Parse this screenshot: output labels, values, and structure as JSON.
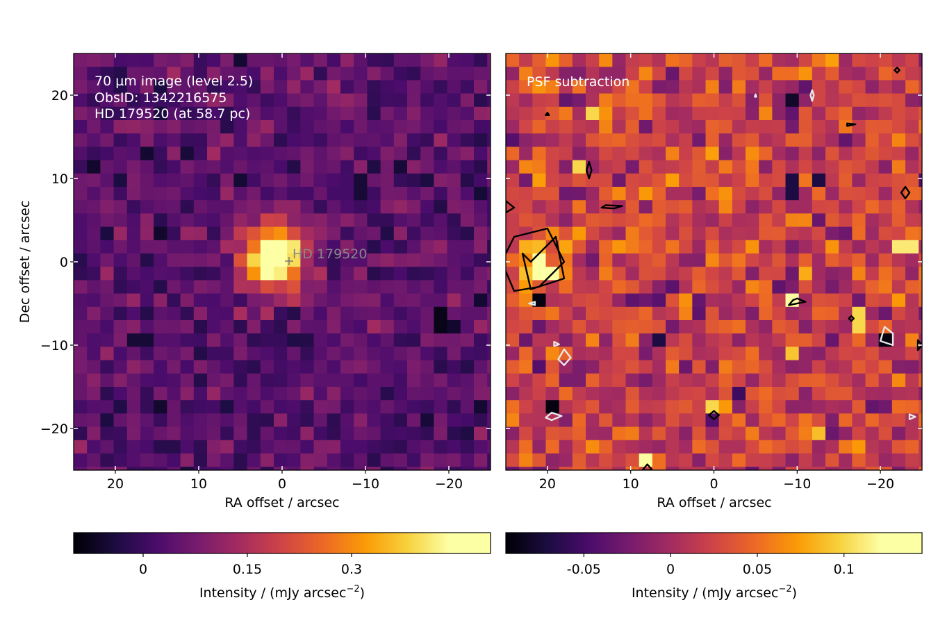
{
  "chart_data": [
    {
      "type": "heatmap",
      "panel": "left",
      "annotation_lines": [
        "70 µm image (level 2.5)",
        "ObsID: 1342216575",
        "HD 179520 (at 58.7 pc)"
      ],
      "star_label": "HD 179520",
      "star_marker": {
        "x": 1,
        "y": 0
      },
      "xlabel": "RA offset / arcsec",
      "ylabel": "Dec offset / arcsec",
      "xlim": [
        25,
        -25
      ],
      "ylim": [
        -25,
        25
      ],
      "xticks": [
        20,
        10,
        0,
        -10,
        -20
      ],
      "xtick_labels": [
        "20",
        "10",
        "0",
        "−10",
        "−20"
      ],
      "yticks": [
        20,
        10,
        0,
        -10,
        -20
      ],
      "ytick_labels": [
        "20",
        "10",
        "0",
        "−10",
        "−20"
      ],
      "grid": false,
      "colormap": "inferno",
      "color_range": [
        -0.1,
        0.5
      ],
      "pixel_size_arcsec": 1.6,
      "noise_level": 0.07,
      "source": {
        "x": 1,
        "y": 0.5,
        "peak": 0.5,
        "width_arcsec": 2.6
      },
      "dark_pixels": [
        [
          15,
          3,
          -0.06
        ],
        [
          -19,
          -7,
          -0.08
        ],
        [
          -20,
          -8,
          -0.06
        ],
        [
          17,
          -9,
          -0.05
        ],
        [
          -9,
          9,
          -0.05
        ],
        [
          20,
          10,
          -0.04
        ]
      ],
      "colorbar": {
        "ticks": [
          0,
          0.15,
          0.3
        ],
        "tick_labels": [
          "0",
          "0.15",
          "0.3"
        ],
        "label": "Intensity / (mJy arcsec",
        "label_exp": "−2",
        "label_end": ")"
      }
    },
    {
      "type": "heatmap",
      "panel": "right",
      "annotation_lines": [
        "PSF subtraction"
      ],
      "xlabel": "RA offset / arcsec",
      "ylabel": "",
      "xlim": [
        25,
        -25
      ],
      "ylim": [
        -25,
        25
      ],
      "xticks": [
        20,
        10,
        0,
        -10,
        -20
      ],
      "xtick_labels": [
        "20",
        "10",
        "0",
        "−10",
        "−20"
      ],
      "yticks": [
        20,
        10,
        0,
        -10,
        -20
      ],
      "grid": false,
      "colormap": "inferno",
      "color_range": [
        -0.095,
        0.145
      ],
      "pixel_size_arcsec": 1.6,
      "noise_level": 0.045,
      "residual_source": {
        "x": 21,
        "y": 0,
        "peak": 0.14,
        "width_arcsec": 1.6
      },
      "bright_pixels": [
        [
          15,
          18,
          0.1
        ],
        [
          16,
          11,
          0.1
        ],
        [
          -10,
          -5,
          0.12
        ],
        [
          -17,
          -7,
          0.1
        ],
        [
          0,
          -18,
          0.1
        ],
        [
          -23,
          2,
          0.11
        ],
        [
          8,
          -24,
          0.12
        ]
      ],
      "dark_pixels": [
        [
          -10,
          20,
          -0.08
        ],
        [
          -20,
          -10,
          -0.09
        ],
        [
          19,
          -18,
          -0.09
        ],
        [
          21,
          -5,
          -0.09
        ],
        [
          -9,
          9,
          -0.07
        ],
        [
          7,
          -10,
          -0.07
        ],
        [
          -12,
          10,
          -0.07
        ]
      ],
      "contours_black": [
        [
          [
            22,
            0
          ],
          [
            19,
            3
          ],
          [
            18,
            -2
          ],
          [
            22,
            -3.3
          ],
          [
            23,
            1
          ]
        ],
        [
          [
            24,
            3
          ],
          [
            20,
            4
          ],
          [
            18,
            0
          ],
          [
            21,
            -3
          ],
          [
            24,
            -3.5
          ],
          [
            25.5,
            0
          ]
        ],
        [
          [
            15,
            12
          ],
          [
            14.7,
            11
          ],
          [
            15,
            10
          ],
          [
            15.3,
            11
          ]
        ],
        [
          [
            13,
            6.8
          ],
          [
            11,
            6.7
          ],
          [
            12,
            6.4
          ],
          [
            13.5,
            6.5
          ]
        ],
        [
          [
            -10,
            -4.4
          ],
          [
            -11,
            -4.8
          ],
          [
            -9,
            -5.2
          ],
          [
            -9.5,
            -4.6
          ]
        ],
        [
          [
            0,
            -17.9
          ],
          [
            -0.6,
            -18.4
          ],
          [
            0,
            -18.9
          ],
          [
            0.6,
            -18.4
          ]
        ],
        [
          [
            -23,
            9
          ],
          [
            -23.5,
            8.3
          ],
          [
            -23,
            7.6
          ],
          [
            -22.5,
            8.3
          ]
        ],
        [
          [
            25,
            7.3
          ],
          [
            24,
            6.5
          ],
          [
            25,
            5.9
          ]
        ],
        [
          [
            -22,
            23.3
          ],
          [
            -22.3,
            23
          ],
          [
            -22,
            22.7
          ],
          [
            -21.7,
            23
          ]
        ],
        [
          [
            -16,
            16.6
          ],
          [
            -17,
            16.5
          ],
          [
            -16,
            16.3
          ]
        ],
        [
          [
            -24.5,
            -9.4
          ],
          [
            -25,
            -10
          ],
          [
            -24.5,
            -10.6
          ]
        ],
        [
          [
            -16.5,
            -6.5
          ],
          [
            -16.8,
            -6.8
          ],
          [
            -16.5,
            -7.1
          ],
          [
            -16.2,
            -6.8
          ]
        ],
        [
          [
            8,
            -24.3
          ],
          [
            7.4,
            -25
          ],
          [
            8.6,
            -25
          ]
        ],
        [
          [
            20,
            17.9
          ],
          [
            19.8,
            17.6
          ],
          [
            20.2,
            17.6
          ]
        ]
      ],
      "contours_white": [
        [
          [
            -20.5,
            -7.8
          ],
          [
            -21.5,
            -8.6
          ],
          [
            -21.5,
            -10
          ],
          [
            -20,
            -9.5
          ]
        ],
        [
          [
            18,
            -10.5
          ],
          [
            18.7,
            -11.7
          ],
          [
            18,
            -12.4
          ],
          [
            17.2,
            -11.5
          ]
        ],
        [
          [
            19.5,
            -18.1
          ],
          [
            18.3,
            -18.5
          ],
          [
            19.5,
            -19
          ],
          [
            20.2,
            -18.7
          ]
        ],
        [
          [
            21.5,
            -4.8
          ],
          [
            22.2,
            -5
          ],
          [
            21.5,
            -5.2
          ]
        ],
        [
          [
            -11.8,
            20.6
          ],
          [
            -12,
            20
          ],
          [
            -11.8,
            19.3
          ],
          [
            -11.6,
            20
          ]
        ],
        [
          [
            -23.5,
            -18.3
          ],
          [
            -24.2,
            -18.6
          ],
          [
            -23.5,
            -18.9
          ]
        ],
        [
          [
            19.2,
            -9.6
          ],
          [
            18.6,
            -9.9
          ],
          [
            19.2,
            -10.1
          ]
        ],
        [
          [
            -5,
            20.1
          ],
          [
            -5.1,
            19.8
          ],
          [
            -4.9,
            19.8
          ]
        ]
      ],
      "colorbar": {
        "ticks": [
          -0.05,
          0,
          0.05,
          0.1
        ],
        "tick_labels": [
          "-0.05",
          "0",
          "0.05",
          "0.1"
        ],
        "label": "Intensity / (mJy arcsec",
        "label_exp": "−2",
        "label_end": ")"
      }
    }
  ]
}
